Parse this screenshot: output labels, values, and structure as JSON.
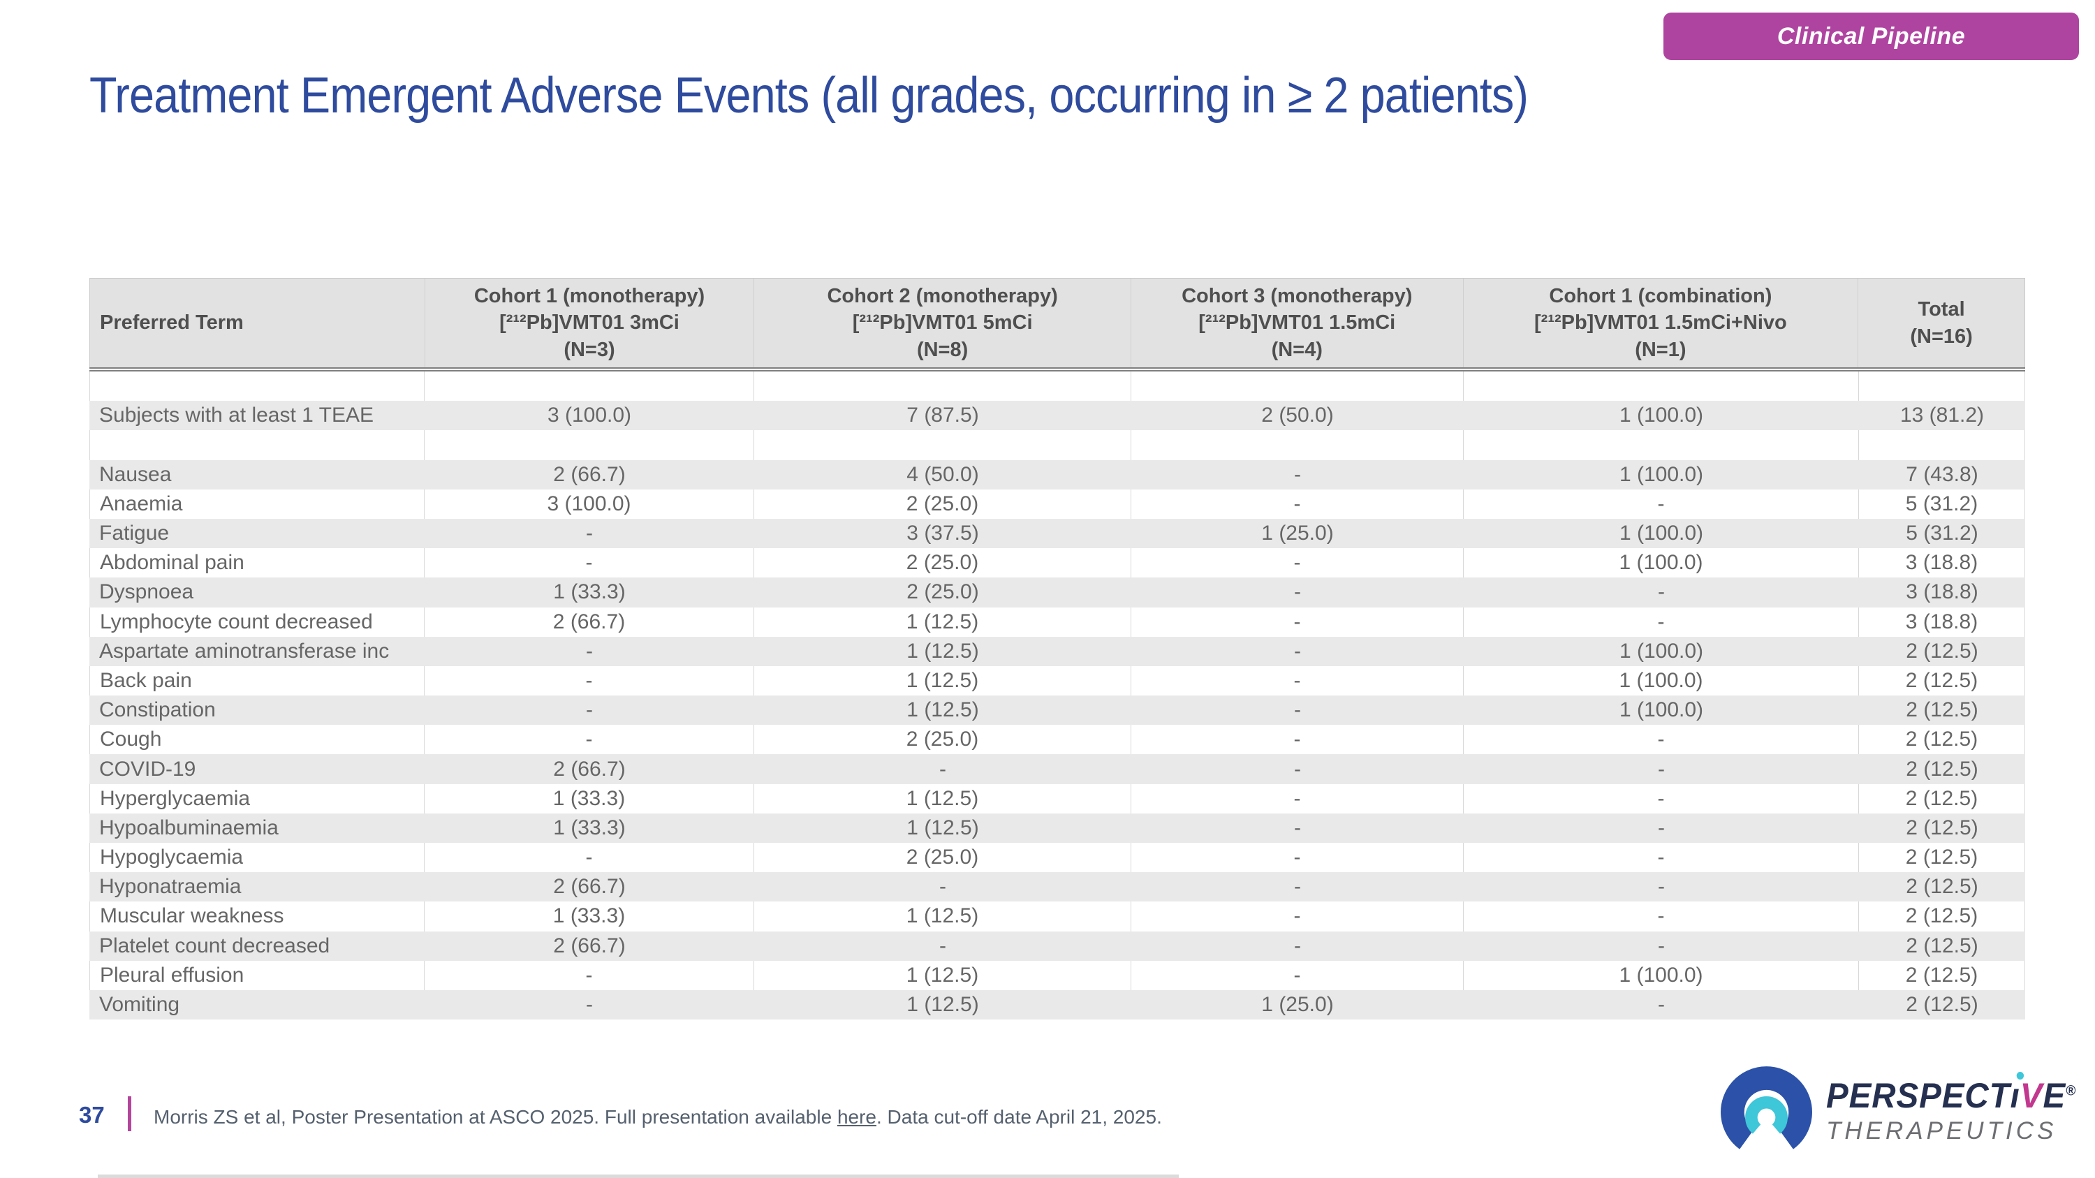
{
  "badge": {
    "label": "Clinical Pipeline"
  },
  "title": "Treatment Emergent Adverse Events (all grades, occurring in ≥ 2 patients)",
  "table": {
    "header": {
      "preferred_term": "Preferred Term",
      "cohorts": [
        {
          "line1": "Cohort 1 (monotherapy)",
          "line2": "[²¹²Pb]VMT01 3mCi",
          "line3": "(N=3)"
        },
        {
          "line1": "Cohort 2 (monotherapy)",
          "line2": "[²¹²Pb]VMT01 5mCi",
          "line3": "(N=8)"
        },
        {
          "line1": "Cohort 3 (monotherapy)",
          "line2": "[²¹²Pb]VMT01 1.5mCi",
          "line3": "(N=4)"
        },
        {
          "line1": "Cohort 1 (combination)",
          "line2": "[²¹²Pb]VMT01 1.5mCi+Nivo",
          "line3": "(N=1)"
        }
      ],
      "total": {
        "line1": "Total",
        "line3": "(N=16)"
      }
    },
    "rows": [
      {
        "spacer": true,
        "label": "",
        "values": [
          "",
          "",
          "",
          "",
          ""
        ]
      },
      {
        "spacer": false,
        "label": "Subjects with at least 1 TEAE",
        "values": [
          "3 (100.0)",
          "7 (87.5)",
          "2 (50.0)",
          "1 (100.0)",
          "13 (81.2)"
        ]
      },
      {
        "spacer": true,
        "label": "",
        "values": [
          "",
          "",
          "",
          "",
          ""
        ]
      },
      {
        "spacer": false,
        "label": "Nausea",
        "values": [
          "2 (66.7)",
          "4 (50.0)",
          "-",
          "1 (100.0)",
          "7 (43.8)"
        ]
      },
      {
        "spacer": false,
        "label": "Anaemia",
        "values": [
          "3 (100.0)",
          "2 (25.0)",
          "-",
          "-",
          "5 (31.2)"
        ]
      },
      {
        "spacer": false,
        "label": "Fatigue",
        "values": [
          "-",
          "3 (37.5)",
          "1 (25.0)",
          "1 (100.0)",
          "5 (31.2)"
        ]
      },
      {
        "spacer": false,
        "label": "Abdominal pain",
        "values": [
          "-",
          "2 (25.0)",
          "-",
          "1 (100.0)",
          "3 (18.8)"
        ]
      },
      {
        "spacer": false,
        "label": "Dyspnoea",
        "values": [
          "1 (33.3)",
          "2 (25.0)",
          "-",
          "-",
          "3 (18.8)"
        ]
      },
      {
        "spacer": false,
        "label": "Lymphocyte count decreased",
        "values": [
          "2 (66.7)",
          "1 (12.5)",
          "-",
          "-",
          "3 (18.8)"
        ]
      },
      {
        "spacer": false,
        "label": "Aspartate aminotransferase inc",
        "values": [
          "-",
          "1 (12.5)",
          "-",
          "1 (100.0)",
          "2 (12.5)"
        ]
      },
      {
        "spacer": false,
        "label": "Back pain",
        "values": [
          "-",
          "1 (12.5)",
          "-",
          "1 (100.0)",
          "2 (12.5)"
        ]
      },
      {
        "spacer": false,
        "label": "Constipation",
        "values": [
          "-",
          "1 (12.5)",
          "-",
          "1 (100.0)",
          "2 (12.5)"
        ]
      },
      {
        "spacer": false,
        "label": "Cough",
        "values": [
          "-",
          "2 (25.0)",
          "-",
          "-",
          "2 (12.5)"
        ]
      },
      {
        "spacer": false,
        "label": "COVID-19",
        "values": [
          "2 (66.7)",
          "-",
          "-",
          "-",
          "2 (12.5)"
        ]
      },
      {
        "spacer": false,
        "label": "Hyperglycaemia",
        "values": [
          "1 (33.3)",
          "1 (12.5)",
          "-",
          "-",
          "2 (12.5)"
        ]
      },
      {
        "spacer": false,
        "label": "Hypoalbuminaemia",
        "values": [
          "1 (33.3)",
          "1 (12.5)",
          "-",
          "-",
          "2 (12.5)"
        ]
      },
      {
        "spacer": false,
        "label": "Hypoglycaemia",
        "values": [
          "-",
          "2 (25.0)",
          "-",
          "-",
          "2 (12.5)"
        ]
      },
      {
        "spacer": false,
        "label": "Hyponatraemia",
        "values": [
          "2 (66.7)",
          "-",
          "-",
          "-",
          "2 (12.5)"
        ]
      },
      {
        "spacer": false,
        "label": "Muscular weakness",
        "values": [
          "1 (33.3)",
          "1 (12.5)",
          "-",
          "-",
          "2 (12.5)"
        ]
      },
      {
        "spacer": false,
        "label": "Platelet count decreased",
        "values": [
          "2 (66.7)",
          "-",
          "-",
          "-",
          "2 (12.5)"
        ]
      },
      {
        "spacer": false,
        "label": "Pleural effusion",
        "values": [
          "-",
          "1 (12.5)",
          "-",
          "1 (100.0)",
          "2 (12.5)"
        ]
      },
      {
        "spacer": false,
        "label": "Vomiting",
        "values": [
          "-",
          "1 (12.5)",
          "1 (25.0)",
          "-",
          "2 (12.5)"
        ]
      }
    ]
  },
  "footer": {
    "page_number": "37",
    "citation_prefix": "Morris ZS et al, Poster Presentation at ASCO 2025. Full presentation available ",
    "link_label": "here",
    "citation_suffix": ". Data cut-off date April 21, 2025."
  },
  "logo": {
    "word_part1": "PERSPECT",
    "word_i": "ı",
    "word_v": "V",
    "word_e": "E",
    "registered": "®",
    "line2": "THERAPEUTICS"
  },
  "colors": {
    "title_navy": "#2E4B9E",
    "badge_magenta": "#AF44A0",
    "footer_bar_magenta": "#B5459B",
    "header_bg": "#E2E2E2",
    "stripe_bg": "#E9E9E9",
    "cell_text": "#666666",
    "logo_blue": "#2B52A8",
    "logo_teal": "#3EC6D9",
    "logo_magenta": "#C2388F",
    "logo_gray": "#6D6E71"
  }
}
